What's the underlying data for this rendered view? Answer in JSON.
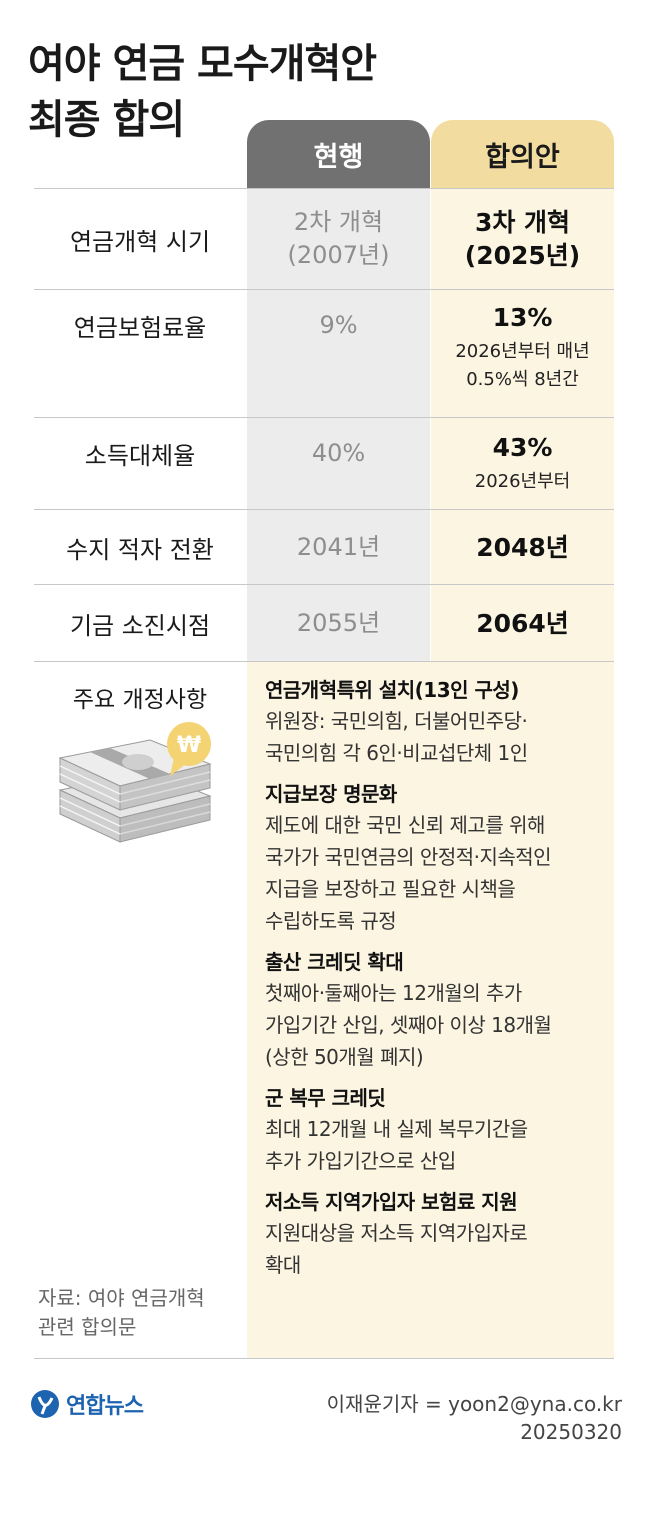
{
  "title": {
    "line1": "여야 연금 모수개혁안",
    "line2": "최종 합의"
  },
  "headers": {
    "current": "현행",
    "agreement": "합의안"
  },
  "rows": [
    {
      "label": "연금개혁 시기",
      "current": [
        "2차 개혁",
        "(2007년)"
      ],
      "agreement": [
        "3차 개혁",
        "(2025년)"
      ],
      "note": []
    },
    {
      "label": "연금보험료율",
      "current": [
        "9%"
      ],
      "agreement": [
        "13%"
      ],
      "note": [
        "2026년부터 매년",
        "0.5%씩 8년간"
      ]
    },
    {
      "label": "소득대체율",
      "current": [
        "40%"
      ],
      "agreement": [
        "43%"
      ],
      "note": [
        "2026년부터"
      ]
    },
    {
      "label": "수지 적자 전환",
      "current": [
        "2041년"
      ],
      "agreement": [
        "2048년"
      ],
      "note": []
    },
    {
      "label": "기금 소진시점",
      "current": [
        "2055년"
      ],
      "agreement": [
        "2064년"
      ],
      "note": []
    }
  ],
  "main_changes": {
    "label": "주요 개정사항",
    "items": [
      {
        "title": "연금개혁특위 설치(13인 구성)",
        "body": [
          "위원장: 국민의힘, 더불어민주당·",
          "국민의힘 각 6인·비교섭단체 1인"
        ]
      },
      {
        "title": "지급보장 명문화",
        "body": [
          "제도에 대한 국민 신뢰 제고를 위해",
          "국가가 국민연금의 안정적·지속적인",
          "지급을 보장하고 필요한 시책을",
          "수립하도록 규정"
        ]
      },
      {
        "title": "출산 크레딧 확대",
        "body": [
          "첫째아·둘째아는 12개월의 추가",
          "가입기간 산입, 셋째아 이상 18개월",
          "(상한 50개월 폐지)"
        ]
      },
      {
        "title": "군 복무 크레딧",
        "body": [
          "최대 12개월 내 실제 복무기간을",
          "추가 가입기간으로 산입"
        ]
      },
      {
        "title": "저소득 지역가입자 보험료 지원",
        "body": [
          "지원대상을 저소득 지역가입자로",
          "확대"
        ]
      }
    ]
  },
  "source": [
    "자료: 여야 연금개혁",
    "관련 합의문"
  ],
  "logo": "연합뉴스",
  "credit": {
    "reporter": "이재윤기자 = yoon2@yna.co.kr",
    "date": "20250320"
  },
  "icons": {
    "money": "money-stack-icon",
    "won": "won-bubble-icon"
  },
  "colors": {
    "current_header": "#717171",
    "agreement_header": "#f2dca0",
    "current_bg": "#ececec",
    "agreement_bg": "#fbf5e2",
    "won_bubble": "#f3d372",
    "brand": "#1e63b0"
  }
}
